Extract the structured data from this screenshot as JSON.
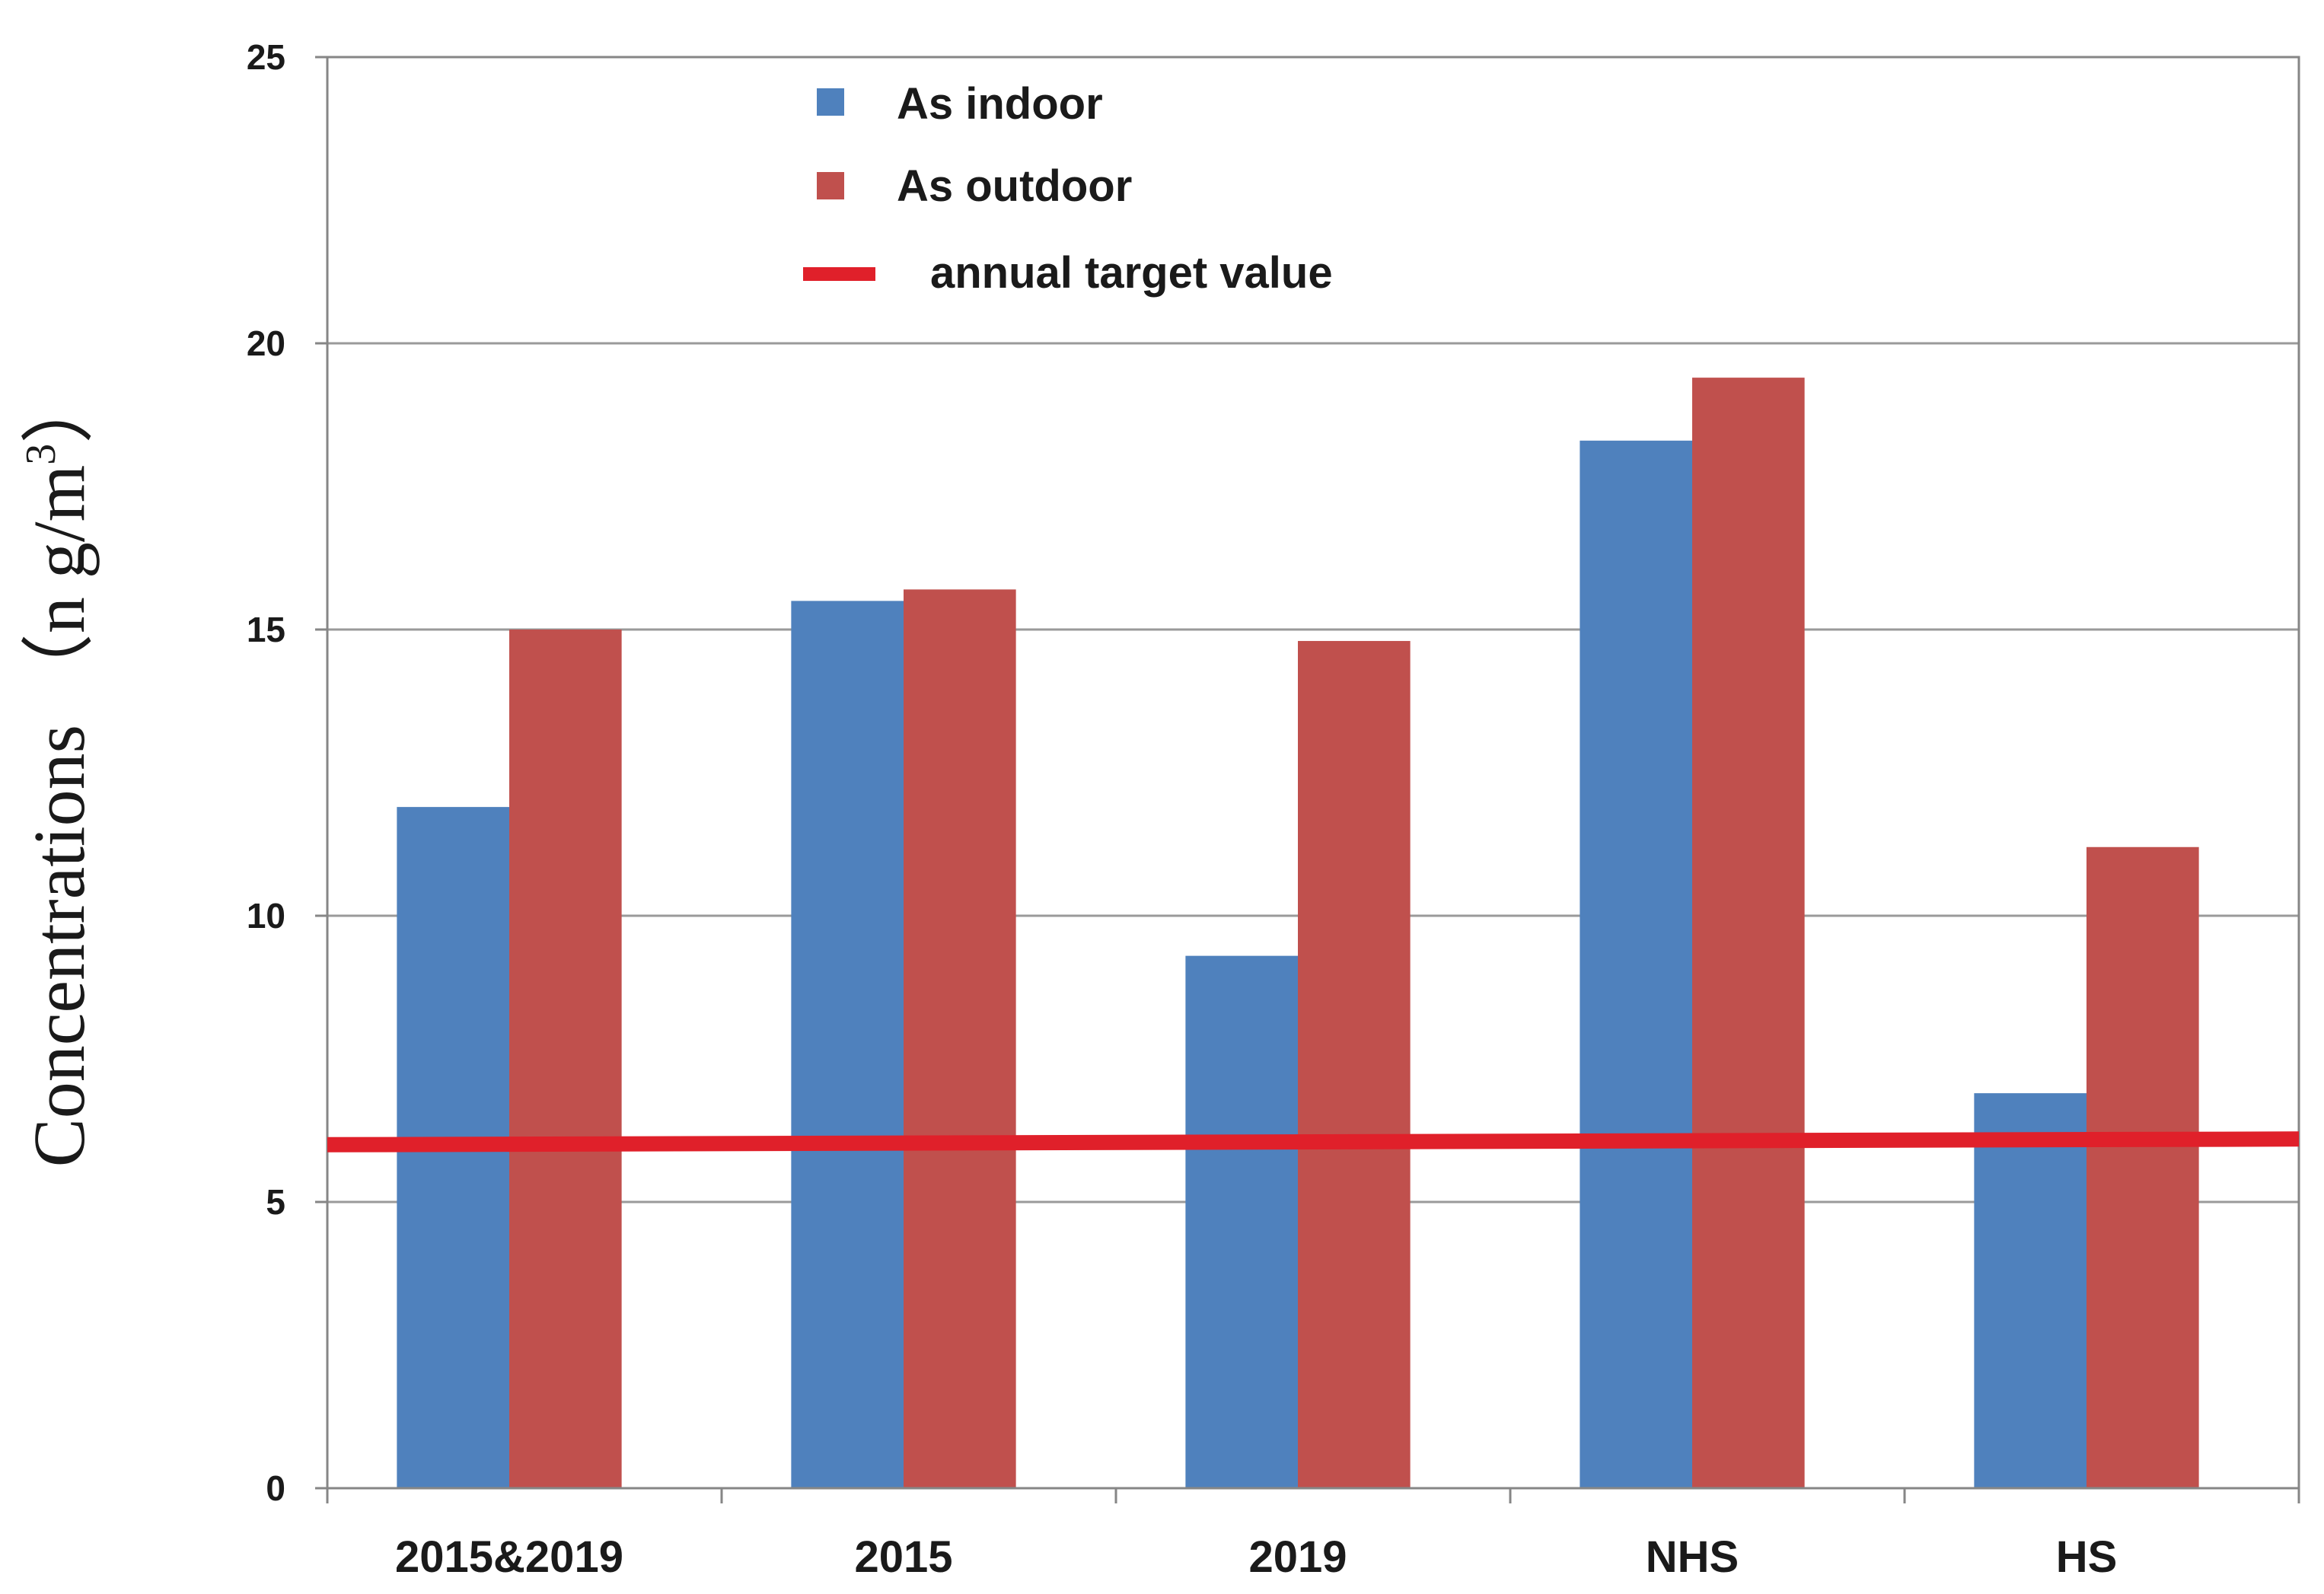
{
  "chart_data": {
    "type": "bar",
    "title": "",
    "xlabel": "",
    "ylabel": {
      "prefix": "Concentrations （n g/m",
      "superscript": "3",
      "suffix": "）"
    },
    "ylim": [
      0,
      25
    ],
    "yticks": [
      0,
      5,
      10,
      15,
      20,
      25
    ],
    "grid": true,
    "categories": [
      "2015&2019",
      "2015",
      "2019",
      "NHS",
      "HS"
    ],
    "series": [
      {
        "name": "As indoor",
        "color": "#4f81bd",
        "values": [
          11.9,
          15.5,
          9.3,
          18.3,
          6.9
        ]
      },
      {
        "name": "As outdoor",
        "color": "#c0504d",
        "values": [
          15.0,
          15.7,
          14.8,
          19.4,
          11.2
        ]
      }
    ],
    "reference_line": {
      "name": "annual target value",
      "color": "#e0202a",
      "value_start": 6.0,
      "value_end": 6.1
    },
    "legend_position": "top-left"
  }
}
